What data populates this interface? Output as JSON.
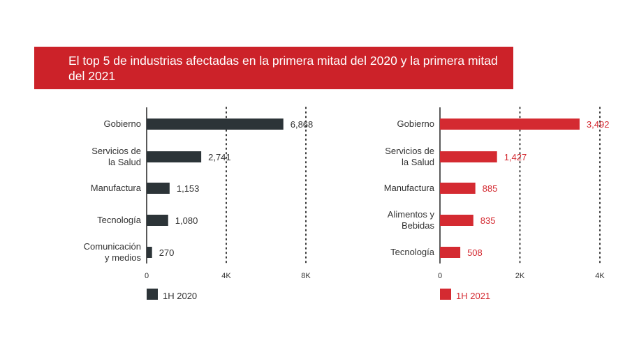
{
  "title": "El top 5 de industrias afectadas en la primera mitad del 2020 y la primera mitad del 2021",
  "chart_data": [
    {
      "type": "bar",
      "orientation": "horizontal",
      "categories": [
        [
          "Gobierno"
        ],
        [
          "Servicios de",
          "la Salud"
        ],
        [
          "Manufactura"
        ],
        [
          "Tecnología"
        ],
        [
          "Comunicación",
          "y medios"
        ]
      ],
      "values": [
        6868,
        2741,
        1153,
        1080,
        270
      ],
      "value_labels": [
        "6,868",
        "2,741",
        "1,153",
        "1,080",
        "270"
      ],
      "xlim": [
        0,
        8000
      ],
      "ticks": [
        {
          "v": 0,
          "label": "0"
        },
        {
          "v": 4000,
          "label": "4K"
        },
        {
          "v": 8000,
          "label": "8K"
        }
      ],
      "legend": "1H 2020",
      "legend_position": "bottom-left",
      "grid": "dotted vertical",
      "color": "#2c3438"
    },
    {
      "type": "bar",
      "orientation": "horizontal",
      "categories": [
        [
          "Gobierno"
        ],
        [
          "Servicios de",
          "la Salud"
        ],
        [
          "Manufactura"
        ],
        [
          "Alimentos y",
          "Bebidas"
        ],
        [
          "Tecnología"
        ]
      ],
      "values": [
        3492,
        1427,
        885,
        835,
        508
      ],
      "value_labels": [
        "3,492",
        "1,427",
        "885",
        "835",
        "508"
      ],
      "xlim": [
        0,
        4000
      ],
      "ticks": [
        {
          "v": 0,
          "label": "0"
        },
        {
          "v": 2000,
          "label": "2K"
        },
        {
          "v": 4000,
          "label": "4K"
        }
      ],
      "legend": "1H 2021",
      "legend_position": "bottom-left",
      "grid": "dotted vertical",
      "color": "#d42a31"
    }
  ],
  "colors": {
    "banner": "#cc2229",
    "text": "#333333"
  }
}
